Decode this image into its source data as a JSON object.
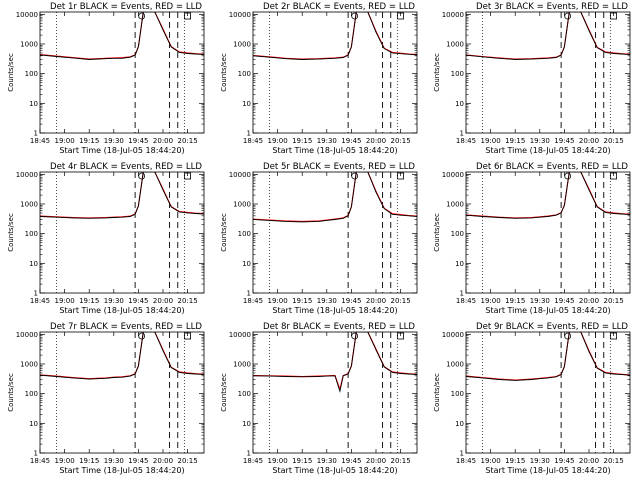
{
  "figure": {
    "xlabel": "Start Time (18-Jul-05 18:44:20)",
    "ylabel": "Counts/sec",
    "x_ticks": [
      "18:45",
      "19:00",
      "19:15",
      "19:30",
      "19:45",
      "20:00",
      "20:15"
    ],
    "y_ticks": [
      "1",
      "10",
      "100",
      "1000",
      "10000"
    ]
  },
  "chart_data": [
    {
      "type": "line",
      "title": "Det 1r BLACK = Events, RED = LLD",
      "xlabel": "Start Time (18-Jul-05 18:44:20)",
      "ylabel": "Counts/sec",
      "yscale": "log",
      "ylim": [
        1,
        12000
      ],
      "xlim": [
        "18:45",
        "20:25"
      ],
      "grid": false,
      "x_minutes": [
        0,
        10,
        20,
        30,
        40,
        45,
        50,
        55,
        58,
        60,
        63,
        64,
        65,
        66,
        70,
        75,
        80,
        85,
        90,
        95,
        100
      ],
      "series": [
        {
          "name": "BLACK = Events",
          "color": "#000000",
          "values": [
            430,
            380,
            340,
            300,
            320,
            330,
            330,
            360,
            420,
            800,
            12000,
            12000,
            12000,
            12000,
            12000,
            3000,
            800,
            520,
            480,
            460,
            440
          ]
        },
        {
          "name": "RED = LLD",
          "color": "#ff0000",
          "values": [
            440,
            390,
            350,
            310,
            330,
            340,
            345,
            370,
            430,
            820,
            12000,
            12000,
            12000,
            12000,
            12000,
            3200,
            820,
            540,
            500,
            470,
            450
          ]
        }
      ],
      "vlines_dotted": [
        10,
        88
      ],
      "vlines_dashed": [
        58,
        79,
        84
      ]
    },
    {
      "type": "line",
      "title": "Det 2r BLACK = Events, RED = LLD",
      "xlabel": "Start Time (18-Jul-05 18:44:20)",
      "ylabel": "Counts/sec",
      "yscale": "log",
      "ylim": [
        1,
        12000
      ],
      "xlim": [
        "18:45",
        "20:25"
      ],
      "grid": false,
      "x_minutes": [
        0,
        10,
        20,
        30,
        40,
        45,
        50,
        55,
        58,
        60,
        63,
        64,
        65,
        66,
        70,
        75,
        80,
        85,
        90,
        95,
        100
      ],
      "series": [
        {
          "name": "BLACK = Events",
          "color": "#000000",
          "values": [
            400,
            360,
            320,
            300,
            310,
            320,
            330,
            350,
            420,
            800,
            12000,
            12000,
            12000,
            12000,
            12000,
            2500,
            700,
            500,
            470,
            450,
            430
          ]
        },
        {
          "name": "RED = LLD",
          "color": "#ff0000",
          "values": [
            410,
            370,
            330,
            310,
            320,
            330,
            340,
            360,
            430,
            820,
            12000,
            12000,
            12000,
            12000,
            12000,
            2700,
            720,
            520,
            490,
            460,
            440
          ]
        }
      ],
      "vlines_dotted": [
        10,
        88
      ],
      "vlines_dashed": [
        58,
        79,
        84
      ]
    },
    {
      "type": "line",
      "title": "Det 3r BLACK = Events, RED = LLD",
      "xlabel": "Start Time (18-Jul-05 18:44:20)",
      "ylabel": "Counts/sec",
      "yscale": "log",
      "ylim": [
        1,
        12000
      ],
      "xlim": [
        "18:45",
        "20:25"
      ],
      "grid": false,
      "x_minutes": [
        0,
        10,
        20,
        30,
        40,
        45,
        50,
        55,
        58,
        60,
        63,
        64,
        65,
        66,
        70,
        75,
        80,
        85,
        90,
        95,
        100
      ],
      "series": [
        {
          "name": "BLACK = Events",
          "color": "#000000",
          "values": [
            420,
            370,
            330,
            300,
            310,
            320,
            330,
            350,
            420,
            800,
            12000,
            12000,
            12000,
            12000,
            12000,
            2800,
            750,
            520,
            480,
            460,
            440
          ]
        },
        {
          "name": "RED = LLD",
          "color": "#ff0000",
          "values": [
            430,
            380,
            340,
            310,
            320,
            330,
            340,
            360,
            430,
            820,
            12000,
            12000,
            12000,
            12000,
            12000,
            3000,
            770,
            540,
            500,
            470,
            450
          ]
        }
      ],
      "vlines_dotted": [
        10,
        88
      ],
      "vlines_dashed": [
        58,
        79,
        84
      ]
    },
    {
      "type": "line",
      "title": "Det 4r BLACK = Events, RED = LLD",
      "xlabel": "Start Time (18-Jul-05 18:44:20)",
      "ylabel": "Counts/sec",
      "yscale": "log",
      "ylim": [
        1,
        12000
      ],
      "xlim": [
        "18:45",
        "20:25"
      ],
      "grid": false,
      "x_minutes": [
        0,
        10,
        20,
        30,
        40,
        45,
        50,
        55,
        58,
        60,
        63,
        64,
        65,
        66,
        70,
        75,
        80,
        85,
        90,
        95,
        100
      ],
      "series": [
        {
          "name": "BLACK = Events",
          "color": "#000000",
          "values": [
            380,
            360,
            340,
            330,
            340,
            350,
            360,
            380,
            450,
            850,
            12000,
            12000,
            12000,
            12000,
            12000,
            3000,
            800,
            540,
            500,
            480,
            460
          ]
        },
        {
          "name": "RED = LLD",
          "color": "#ff0000",
          "values": [
            390,
            370,
            350,
            340,
            350,
            360,
            370,
            390,
            460,
            870,
            12000,
            12000,
            12000,
            12000,
            12000,
            3200,
            820,
            560,
            520,
            490,
            470
          ]
        }
      ],
      "vlines_dotted": [
        10,
        88
      ],
      "vlines_dashed": [
        58,
        79,
        84
      ]
    },
    {
      "type": "line",
      "title": "Det 5r BLACK = Events, RED = LLD",
      "xlabel": "Start Time (18-Jul-05 18:44:20)",
      "ylabel": "Counts/sec",
      "yscale": "log",
      "ylim": [
        1,
        12000
      ],
      "xlim": [
        "18:45",
        "20:25"
      ],
      "grid": false,
      "x_minutes": [
        0,
        10,
        20,
        30,
        40,
        45,
        50,
        55,
        58,
        60,
        63,
        64,
        65,
        66,
        70,
        75,
        80,
        85,
        90,
        95,
        100
      ],
      "series": [
        {
          "name": "BLACK = Events",
          "color": "#000000",
          "values": [
            300,
            280,
            260,
            250,
            260,
            280,
            300,
            330,
            400,
            800,
            12000,
            12000,
            12000,
            12000,
            12000,
            2500,
            700,
            450,
            420,
            400,
            380
          ]
        },
        {
          "name": "RED = LLD",
          "color": "#ff0000",
          "values": [
            310,
            290,
            270,
            260,
            270,
            290,
            310,
            340,
            410,
            820,
            12000,
            12000,
            12000,
            12000,
            12000,
            2700,
            720,
            470,
            440,
            410,
            390
          ]
        }
      ],
      "vlines_dotted": [
        10,
        88
      ],
      "vlines_dashed": [
        58,
        79,
        84
      ]
    },
    {
      "type": "line",
      "title": "Det 6r BLACK = Events, RED = LLD",
      "xlabel": "Start Time (18-Jul-05 18:44:20)",
      "ylabel": "Counts/sec",
      "yscale": "log",
      "ylim": [
        1,
        12000
      ],
      "xlim": [
        "18:45",
        "20:25"
      ],
      "grid": false,
      "x_minutes": [
        0,
        10,
        20,
        30,
        40,
        45,
        50,
        55,
        58,
        60,
        63,
        64,
        65,
        66,
        70,
        75,
        80,
        85,
        90,
        95,
        100
      ],
      "series": [
        {
          "name": "BLACK = Events",
          "color": "#000000",
          "values": [
            420,
            380,
            350,
            330,
            340,
            360,
            380,
            420,
            500,
            900,
            12000,
            12000,
            12000,
            12000,
            12000,
            3000,
            800,
            520,
            480,
            460,
            440
          ]
        },
        {
          "name": "RED = LLD",
          "color": "#ff0000",
          "values": [
            430,
            390,
            360,
            340,
            350,
            370,
            390,
            430,
            510,
            920,
            12000,
            12000,
            12000,
            12000,
            12000,
            3200,
            820,
            540,
            500,
            470,
            450
          ]
        }
      ],
      "vlines_dotted": [
        10,
        88
      ],
      "vlines_dashed": [
        58,
        79,
        84
      ]
    },
    {
      "type": "line",
      "title": "Det 7r BLACK = Events, RED = LLD",
      "xlabel": "Start Time (18-Jul-05 18:44:20)",
      "ylabel": "Counts/sec",
      "yscale": "log",
      "ylim": [
        1,
        12000
      ],
      "xlim": [
        "18:45",
        "20:25"
      ],
      "grid": false,
      "x_minutes": [
        0,
        10,
        20,
        30,
        40,
        45,
        50,
        55,
        58,
        60,
        63,
        64,
        65,
        66,
        70,
        75,
        80,
        85,
        90,
        95,
        100
      ],
      "series": [
        {
          "name": "BLACK = Events",
          "color": "#000000",
          "values": [
            420,
            380,
            340,
            310,
            330,
            350,
            360,
            390,
            460,
            850,
            12000,
            12000,
            12000,
            12000,
            12000,
            2800,
            760,
            520,
            480,
            460,
            440
          ]
        },
        {
          "name": "RED = LLD",
          "color": "#ff0000",
          "values": [
            430,
            390,
            350,
            320,
            340,
            360,
            370,
            400,
            470,
            870,
            12000,
            12000,
            12000,
            12000,
            12000,
            3000,
            780,
            540,
            500,
            470,
            450
          ]
        }
      ],
      "vlines_dotted": [
        10,
        88
      ],
      "vlines_dashed": [
        58,
        79,
        84
      ]
    },
    {
      "type": "line",
      "title": "Det 8r BLACK = Events, RED = LLD",
      "xlabel": "Start Time (18-Jul-05 18:44:20)",
      "ylabel": "Counts/sec",
      "yscale": "log",
      "ylim": [
        1,
        12000
      ],
      "xlim": [
        "18:45",
        "20:25"
      ],
      "grid": false,
      "x_minutes": [
        0,
        10,
        20,
        30,
        40,
        45,
        50,
        53,
        55,
        58,
        60,
        63,
        64,
        65,
        66,
        70,
        75,
        80,
        85,
        90,
        95,
        100
      ],
      "series": [
        {
          "name": "BLACK = Events",
          "color": "#000000",
          "values": [
            400,
            390,
            380,
            370,
            380,
            390,
            400,
            120,
            400,
            460,
            850,
            12000,
            12000,
            12000,
            12000,
            12000,
            3000,
            800,
            520,
            480,
            460,
            440
          ]
        },
        {
          "name": "RED = LLD",
          "color": "#ff0000",
          "values": [
            410,
            400,
            390,
            380,
            390,
            400,
            410,
            140,
            410,
            470,
            870,
            12000,
            12000,
            12000,
            12000,
            12000,
            3200,
            820,
            540,
            500,
            470,
            450
          ]
        }
      ],
      "vlines_dotted": [
        10,
        88
      ],
      "vlines_dashed": [
        58,
        79,
        84
      ]
    },
    {
      "type": "line",
      "title": "Det 9r BLACK = Events, RED = LLD",
      "xlabel": "Start Time (18-Jul-05 18:44:20)",
      "ylabel": "Counts/sec",
      "yscale": "log",
      "ylim": [
        1,
        12000
      ],
      "xlim": [
        "18:45",
        "20:25"
      ],
      "grid": false,
      "x_minutes": [
        0,
        10,
        20,
        30,
        40,
        45,
        50,
        55,
        58,
        60,
        63,
        64,
        65,
        66,
        70,
        75,
        80,
        85,
        90,
        95,
        100
      ],
      "series": [
        {
          "name": "BLACK = Events",
          "color": "#000000",
          "values": [
            380,
            340,
            300,
            280,
            300,
            320,
            340,
            370,
            440,
            820,
            12000,
            12000,
            12000,
            12000,
            12000,
            2600,
            720,
            500,
            460,
            440,
            420
          ]
        },
        {
          "name": "RED = LLD",
          "color": "#ff0000",
          "values": [
            390,
            350,
            310,
            290,
            310,
            330,
            350,
            380,
            450,
            840,
            12000,
            12000,
            12000,
            12000,
            12000,
            2800,
            740,
            520,
            480,
            450,
            430
          ]
        }
      ],
      "vlines_dotted": [
        10,
        88
      ],
      "vlines_dashed": [
        58,
        79,
        84
      ]
    }
  ]
}
